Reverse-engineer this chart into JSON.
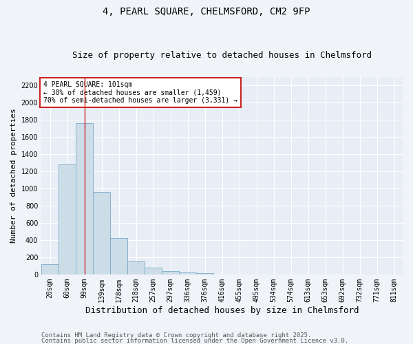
{
  "title1": "4, PEARL SQUARE, CHELMSFORD, CM2 9FP",
  "title2": "Size of property relative to detached houses in Chelmsford",
  "xlabel": "Distribution of detached houses by size in Chelmsford",
  "ylabel": "Number of detached properties",
  "categories": [
    "20sqm",
    "60sqm",
    "99sqm",
    "139sqm",
    "178sqm",
    "218sqm",
    "257sqm",
    "297sqm",
    "336sqm",
    "376sqm",
    "416sqm",
    "455sqm",
    "495sqm",
    "534sqm",
    "574sqm",
    "613sqm",
    "653sqm",
    "692sqm",
    "732sqm",
    "771sqm",
    "811sqm"
  ],
  "values": [
    120,
    1280,
    1760,
    960,
    420,
    150,
    80,
    40,
    20,
    15,
    0,
    0,
    0,
    0,
    0,
    0,
    0,
    0,
    0,
    0,
    0
  ],
  "bar_color": "#ccdde8",
  "bar_edge_color": "#7aaac8",
  "vline_index": 2,
  "vline_color": "#cc2222",
  "annotation_text": "4 PEARL SQUARE: 101sqm\n← 30% of detached houses are smaller (1,459)\n70% of semi-detached houses are larger (3,331) →",
  "annotation_box_color": "#ffffff",
  "annotation_box_edge_color": "#cc2222",
  "ylim": [
    0,
    2300
  ],
  "yticks": [
    0,
    200,
    400,
    600,
    800,
    1000,
    1200,
    1400,
    1600,
    1800,
    2000,
    2200
  ],
  "footer1": "Contains HM Land Registry data © Crown copyright and database right 2025.",
  "footer2": "Contains public sector information licensed under the Open Government Licence v3.0.",
  "plot_bg_color": "#e8eef5",
  "fig_bg_color": "#f0f4f8",
  "grid_color": "#ffffff",
  "title1_fontsize": 10,
  "title2_fontsize": 9,
  "xlabel_fontsize": 9,
  "ylabel_fontsize": 8,
  "tick_fontsize": 7,
  "footer_fontsize": 6.5,
  "annotation_fontsize": 7
}
